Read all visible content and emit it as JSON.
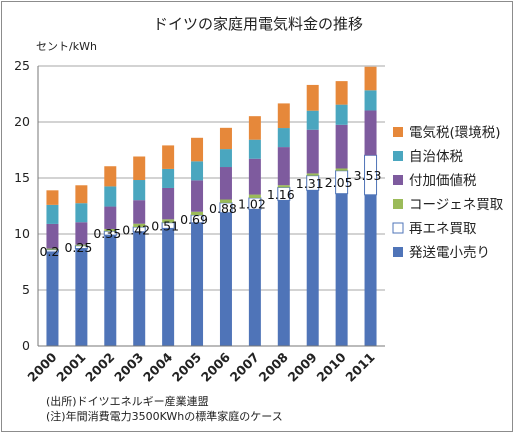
{
  "chart_data": {
    "type": "bar",
    "stacked": true,
    "title": "ドイツの家庭用電気料金の推移",
    "unit_label": "セント/kWh",
    "categories": [
      "2000",
      "2001",
      "2002",
      "2003",
      "2004",
      "2005",
      "2006",
      "2007",
      "2008",
      "2009",
      "2010",
      "2011"
    ],
    "ylim": [
      0,
      25
    ],
    "yticks": [
      0,
      5,
      10,
      15,
      20,
      25
    ],
    "grid": true,
    "legend_position": "right",
    "series": [
      {
        "name": "発送電小売り",
        "color": "#4f74b8",
        "values": [
          8.4,
          8.7,
          9.9,
          10.2,
          10.5,
          11.0,
          11.9,
          12.2,
          13.0,
          13.9,
          13.6,
          13.5
        ]
      },
      {
        "name": "再エネ買取",
        "color": "#ffffff",
        "border": "#4f74b8",
        "values": [
          0.2,
          0.25,
          0.35,
          0.42,
          0.51,
          0.69,
          0.88,
          1.02,
          1.16,
          1.31,
          2.05,
          3.53
        ]
      },
      {
        "name": "コージェネ買取",
        "color": "#9bbb59",
        "values": [
          0.1,
          0.1,
          0.2,
          0.3,
          0.3,
          0.3,
          0.3,
          0.3,
          0.2,
          0.2,
          0.2,
          0.0
        ]
      },
      {
        "name": "付加価値税",
        "color": "#7e5b9e",
        "values": [
          2.2,
          2.0,
          2.0,
          2.1,
          2.8,
          2.8,
          2.9,
          3.2,
          3.4,
          3.9,
          3.9,
          4.0
        ]
      },
      {
        "name": "自治体税",
        "color": "#4aa6bf",
        "values": [
          1.7,
          1.7,
          1.8,
          1.8,
          1.7,
          1.7,
          1.6,
          1.7,
          1.7,
          1.7,
          1.8,
          1.8
        ]
      },
      {
        "name": "電気税(環境税)",
        "color": "#e6883a",
        "values": [
          1.3,
          1.6,
          1.8,
          2.1,
          2.1,
          2.1,
          1.9,
          2.1,
          2.2,
          2.3,
          2.1,
          2.1
        ]
      }
    ],
    "data_labels": {
      "series": "再エネ買取",
      "texts": [
        "0.2",
        "0.25",
        "0.35",
        "0.42",
        "0.51",
        "0.69",
        "0.88",
        "1.02",
        "1.16",
        "1.31",
        "2.05",
        "3.53"
      ]
    },
    "legend_order": [
      "電気税(環境税)",
      "自治体税",
      "付加価値税",
      "コージェネ買取",
      "再エネ買取",
      "発送電小売り"
    ]
  },
  "notes": {
    "source": "(出所)ドイツエネルギー産業連盟",
    "note": "(注)年間消費電力3500KWhの標準家庭のケース"
  }
}
